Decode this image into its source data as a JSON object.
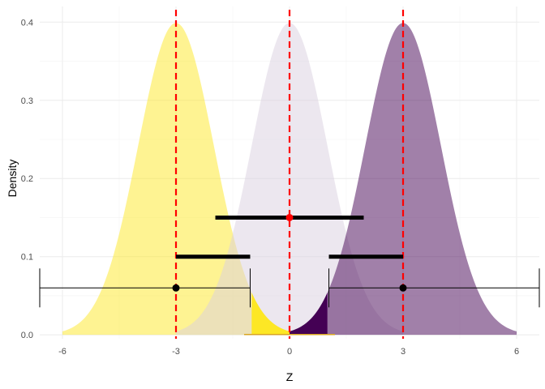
{
  "chart_data": {
    "type": "area",
    "title": "",
    "xlabel": "Z",
    "ylabel": "Density",
    "xlim": [
      -6.6,
      6.6
    ],
    "ylim": [
      -0.005,
      0.42
    ],
    "x_ticks": [
      -6,
      -3,
      0,
      3,
      6
    ],
    "y_ticks": [
      0.0,
      0.1,
      0.2,
      0.3,
      0.4
    ],
    "x_tick_labels": [
      "-6",
      "-3",
      "0",
      "3",
      "6"
    ],
    "y_tick_labels": [
      "0.0",
      "0.1",
      "0.2",
      "0.3",
      "0.4"
    ],
    "grid": true,
    "series": [
      {
        "mean": -3,
        "sd": 1,
        "x_range": [
          -6,
          0
        ],
        "color": "#FDE725",
        "opacity": 0.5
      },
      {
        "mean": 0,
        "sd": 1,
        "x_range": [
          -3,
          3
        ],
        "color": "#D9CFE0",
        "opacity": 0.5
      },
      {
        "mean": 3,
        "sd": 1,
        "x_range": [
          0,
          6
        ],
        "color": "#440154",
        "opacity": 0.5
      }
    ],
    "shaded_regions": [
      {
        "mean": -3,
        "sd": 1,
        "from": -1.0,
        "to": 0.0,
        "color": "#FDE725"
      },
      {
        "mean": 3,
        "sd": 1,
        "from": 0.0,
        "to": 1.0,
        "color": "#440154"
      }
    ],
    "reference_lines": [
      {
        "x": -3,
        "color": "#FF0000",
        "style": "dashed"
      },
      {
        "x": 0,
        "color": "#FF0000",
        "style": "dashed"
      },
      {
        "x": 3,
        "color": "#FF0000",
        "style": "dashed"
      }
    ],
    "intervals": [
      {
        "y": 0.15,
        "from": -1.96,
        "to": 1.96,
        "center": 0,
        "point_color": "#FF0000",
        "style": "thick"
      },
      {
        "y": 0.1,
        "from": -3.0,
        "to": -1.04,
        "center": null,
        "style": "thick"
      },
      {
        "y": 0.1,
        "from": 1.04,
        "to": 3.0,
        "center": null,
        "style": "thick"
      },
      {
        "y": 0.06,
        "from": -6.6,
        "to": -1.04,
        "center": -3,
        "point_color": "#000000",
        "style": "thin"
      },
      {
        "y": 0.06,
        "from": 1.04,
        "to": 6.6,
        "center": 3,
        "point_color": "#000000",
        "style": "thin"
      }
    ]
  }
}
